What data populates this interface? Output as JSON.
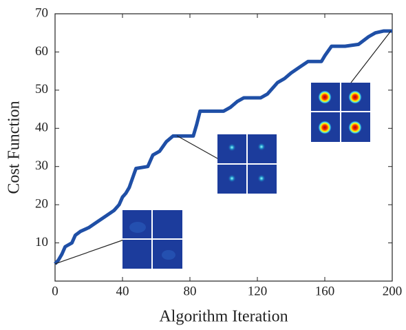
{
  "chart_data": {
    "type": "line",
    "x_label": "Algorithm Iteration",
    "y_label": "Cost Function",
    "x": [
      0,
      2,
      4,
      6,
      10,
      12,
      15,
      20,
      25,
      30,
      35,
      38,
      40,
      42,
      44,
      46,
      48,
      55,
      58,
      62,
      66,
      70,
      82,
      84,
      86,
      100,
      104,
      108,
      112,
      122,
      126,
      132,
      136,
      140,
      145,
      150,
      158,
      160,
      164,
      172,
      180,
      186,
      190,
      195,
      200
    ],
    "series": [
      {
        "color": "#1f4fa6",
        "values": [
          4.5,
          5.5,
          7,
          9,
          10,
          12,
          13,
          14,
          15.5,
          17,
          18.5,
          20,
          22,
          23,
          24.5,
          27,
          29.5,
          30,
          33,
          34,
          36.5,
          38,
          38,
          41,
          44.5,
          44.5,
          45.5,
          47,
          48,
          48,
          49,
          52,
          53,
          54.5,
          56,
          57.5,
          57.5,
          59,
          61.5,
          61.5,
          62,
          64,
          65,
          65.5,
          65.5
        ]
      }
    ],
    "xlim": [
      0,
      200
    ],
    "xticks": [
      0,
      40,
      80,
      120,
      160,
      200
    ],
    "ylim": [
      0,
      70
    ],
    "yticks": [
      10,
      20,
      30,
      40,
      50,
      60,
      70
    ]
  }
}
